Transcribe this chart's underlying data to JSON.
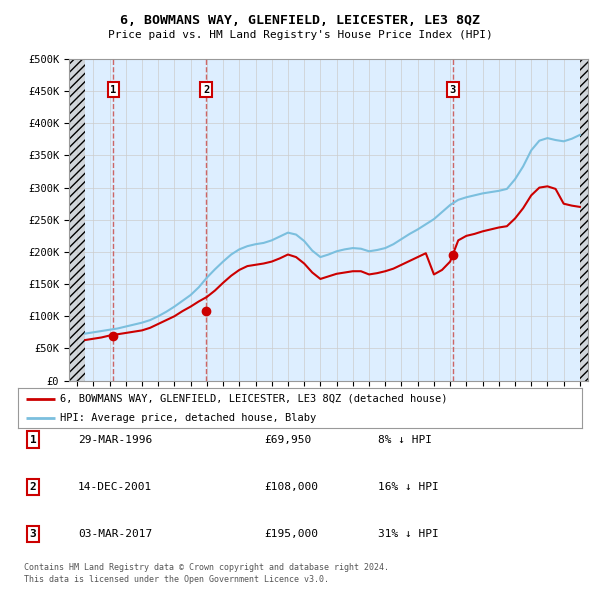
{
  "title": "6, BOWMANS WAY, GLENFIELD, LEICESTER, LE3 8QZ",
  "subtitle": "Price paid vs. HM Land Registry's House Price Index (HPI)",
  "legend_line1": "6, BOWMANS WAY, GLENFIELD, LEICESTER, LE3 8QZ (detached house)",
  "legend_line2": "HPI: Average price, detached house, Blaby",
  "footer1": "Contains HM Land Registry data © Crown copyright and database right 2024.",
  "footer2": "This data is licensed under the Open Government Licence v3.0.",
  "transactions": [
    {
      "num": 1,
      "date": "29-MAR-1996",
      "price": "£69,950",
      "hpi": "8% ↓ HPI",
      "year": 1996.23
    },
    {
      "num": 2,
      "date": "14-DEC-2001",
      "price": "£108,000",
      "hpi": "16% ↓ HPI",
      "year": 2001.95
    },
    {
      "num": 3,
      "date": "03-MAR-2017",
      "price": "£195,000",
      "hpi": "31% ↓ HPI",
      "year": 2017.17
    }
  ],
  "transaction_prices": [
    69950,
    108000,
    195000
  ],
  "hpi_color": "#7bbfde",
  "price_color": "#cc0000",
  "dashed_line_color": "#cc6666",
  "marker_color": "#cc0000",
  "bg_plot_color": "#ddeeff",
  "hatch_color": "#bbbbbb",
  "grid_color": "#cccccc",
  "ylim": [
    0,
    500000
  ],
  "yticks": [
    0,
    50000,
    100000,
    150000,
    200000,
    250000,
    300000,
    350000,
    400000,
    450000,
    500000
  ],
  "ytick_labels": [
    "£0",
    "£50K",
    "£100K",
    "£150K",
    "£200K",
    "£250K",
    "£300K",
    "£350K",
    "£400K",
    "£450K",
    "£500K"
  ],
  "xlim_start": 1993.5,
  "xlim_end": 2025.5,
  "hatch_left_end": 1994.5,
  "hatch_right_start": 2025.0,
  "hpi_data_x": [
    1994.5,
    1995,
    1995.5,
    1996,
    1996.5,
    1997,
    1997.5,
    1998,
    1998.5,
    1999,
    1999.5,
    2000,
    2000.5,
    2001,
    2001.5,
    2002,
    2002.5,
    2003,
    2003.5,
    2004,
    2004.5,
    2005,
    2005.5,
    2006,
    2006.5,
    2007,
    2007.5,
    2008,
    2008.5,
    2009,
    2009.5,
    2010,
    2010.5,
    2011,
    2011.5,
    2012,
    2012.5,
    2013,
    2013.5,
    2014,
    2014.5,
    2015,
    2015.5,
    2016,
    2016.5,
    2017,
    2017.5,
    2018,
    2018.5,
    2019,
    2019.5,
    2020,
    2020.5,
    2021,
    2021.5,
    2022,
    2022.5,
    2023,
    2023.5,
    2024,
    2024.5,
    2025
  ],
  "hpi_data_y": [
    73000,
    75000,
    77000,
    79000,
    81000,
    84000,
    87000,
    90000,
    94000,
    100000,
    107000,
    115000,
    124000,
    133000,
    145000,
    160000,
    173000,
    185000,
    196000,
    204000,
    209000,
    212000,
    214000,
    218000,
    224000,
    230000,
    227000,
    217000,
    202000,
    192000,
    196000,
    201000,
    204000,
    206000,
    205000,
    201000,
    203000,
    206000,
    212000,
    220000,
    228000,
    235000,
    243000,
    251000,
    262000,
    273000,
    281000,
    285000,
    288000,
    291000,
    293000,
    295000,
    298000,
    313000,
    333000,
    358000,
    373000,
    377000,
    374000,
    372000,
    376000,
    382000
  ],
  "price_data_x": [
    1994.5,
    1995,
    1995.5,
    1996,
    1996.5,
    1997,
    1997.5,
    1998,
    1998.5,
    1999,
    1999.5,
    2000,
    2000.5,
    2001,
    2001.5,
    2002,
    2002.5,
    2003,
    2003.5,
    2004,
    2004.5,
    2005,
    2005.5,
    2006,
    2006.5,
    2007,
    2007.5,
    2008,
    2008.5,
    2009,
    2009.5,
    2010,
    2010.5,
    2011,
    2011.5,
    2012,
    2012.5,
    2013,
    2013.5,
    2014,
    2014.5,
    2015,
    2015.5,
    2016,
    2016.5,
    2017,
    2017.5,
    2018,
    2018.5,
    2019,
    2019.5,
    2020,
    2020.5,
    2021,
    2021.5,
    2022,
    2022.5,
    2023,
    2023.5,
    2024,
    2024.5,
    2025
  ],
  "price_data_y": [
    63000,
    65000,
    67000,
    70000,
    72000,
    74000,
    76000,
    78000,
    82000,
    88000,
    94000,
    100000,
    108000,
    115000,
    123000,
    130000,
    140000,
    152000,
    163000,
    172000,
    178000,
    180000,
    182000,
    185000,
    190000,
    196000,
    192000,
    182000,
    168000,
    158000,
    162000,
    166000,
    168000,
    170000,
    170000,
    165000,
    167000,
    170000,
    174000,
    180000,
    186000,
    192000,
    198000,
    165000,
    172000,
    185000,
    218000,
    225000,
    228000,
    232000,
    235000,
    238000,
    240000,
    252000,
    268000,
    288000,
    300000,
    302000,
    298000,
    275000,
    272000,
    270000
  ]
}
